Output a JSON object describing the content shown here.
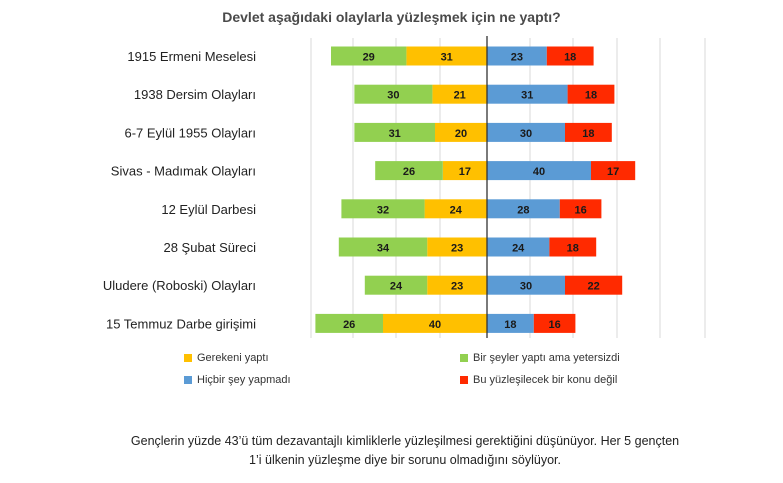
{
  "chart_data": {
    "type": "bar",
    "orientation": "horizontal-diverging",
    "title": "Devlet aşağıdaki olaylarla yüzleşmek için ne yaptı?",
    "categories": [
      "1915 Ermeni Meselesi",
      "1938 Dersim Olayları",
      "6-7 Eylül 1955 Olayları",
      "Sivas - Madımak Olayları",
      "12 Eylül Darbesi",
      "28 Şubat Süreci",
      "Uludere (Roboski) Olayları",
      "15 Temmuz Darbe girişimi"
    ],
    "series": [
      {
        "name": "Bir şeyler yaptı ama yetersizdi",
        "side": "left-outer",
        "color": "#92d050",
        "values": [
          29,
          30,
          31,
          26,
          32,
          34,
          24,
          26
        ]
      },
      {
        "name": "Gerekeni yaptı",
        "side": "left-inner",
        "color": "#ffc000",
        "values": [
          31,
          21,
          20,
          17,
          24,
          23,
          23,
          40
        ]
      },
      {
        "name": "Hiçbir şey yapmadı",
        "side": "right-inner",
        "color": "#5b9bd5",
        "values": [
          23,
          31,
          30,
          40,
          28,
          24,
          30,
          18
        ]
      },
      {
        "name": "Bu yüzleşilecek bir konu değil",
        "side": "right-outer",
        "color": "#ff2a00",
        "values": [
          18,
          18,
          18,
          17,
          16,
          18,
          22,
          16
        ]
      }
    ],
    "legend": [
      {
        "label": "Gerekeni yaptı",
        "color": "#ffc000"
      },
      {
        "label": "Bir şeyler yaptı ama yetersizdi",
        "color": "#92d050"
      },
      {
        "label": "Hiçbir şey yapmadı",
        "color": "#5b9bd5"
      },
      {
        "label": "Bu yüzleşilecek bir konu değil",
        "color": "#ff2a00"
      }
    ],
    "grid": true
  },
  "footnote": {
    "line1": "Gençlerin yüzde 43’ü tüm dezavantajlı kimliklerle yüzleşilmesi gerektiğini düşünüyor. Her 5 gençten",
    "line2": "1’i ülkenin yüzleşme diye bir sorunu olmadığını söylüyor."
  }
}
